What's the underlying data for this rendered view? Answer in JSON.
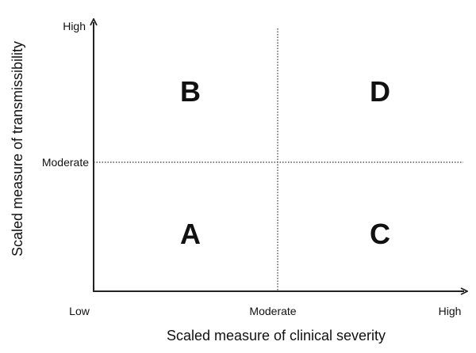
{
  "diagram": {
    "x_axis": {
      "label": "Scaled measure of clinical severity",
      "ticks": {
        "low": "Low",
        "moderate": "Moderate",
        "high": "High"
      }
    },
    "y_axis": {
      "label": "Scaled measure of transmissibility",
      "ticks": {
        "moderate": "Moderate",
        "high": "High"
      }
    },
    "quadrants": {
      "low_severity_high_transmissibility": "B",
      "high_severity_high_transmissibility": "D",
      "low_severity_low_transmissibility": "A",
      "high_severity_low_transmissibility": "C"
    }
  }
}
